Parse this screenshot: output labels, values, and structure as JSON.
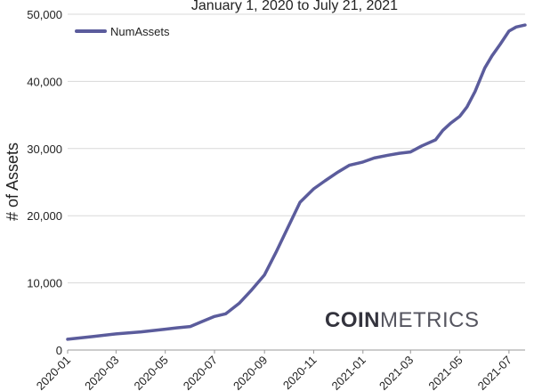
{
  "chart_data": {
    "type": "line",
    "title": "January 1, 2020 to July 21, 2021",
    "ylabel": "# of Assets",
    "xlabel": "",
    "ylim": [
      0,
      50000
    ],
    "xlim": [
      "2020-01-01",
      "2021-07-21"
    ],
    "y_ticks": [
      "0",
      "10,000",
      "20,000",
      "30,000",
      "40,000",
      "50,000"
    ],
    "y_tick_values": [
      0,
      10000,
      20000,
      30000,
      40000,
      50000
    ],
    "x_ticks": [
      "2020-01",
      "2020-03",
      "2020-05",
      "2020-07",
      "2020-09",
      "2020-11",
      "2021-01",
      "2021-03",
      "2021-05",
      "2021-07"
    ],
    "grid": "horizontal",
    "legend_position": "top-left",
    "series": [
      {
        "name": "NumAssets",
        "color": "#5b5c9c",
        "x": [
          "2020-01-01",
          "2020-02-01",
          "2020-03-01",
          "2020-04-01",
          "2020-05-01",
          "2020-05-15",
          "2020-06-01",
          "2020-06-15",
          "2020-07-01",
          "2020-07-15",
          "2020-08-01",
          "2020-08-15",
          "2020-09-01",
          "2020-09-15",
          "2020-10-01",
          "2020-10-15",
          "2020-11-01",
          "2020-11-15",
          "2020-12-01",
          "2020-12-15",
          "2021-01-01",
          "2021-01-15",
          "2021-02-01",
          "2021-02-15",
          "2021-03-01",
          "2021-03-15",
          "2021-04-01",
          "2021-04-10",
          "2021-04-20",
          "2021-05-01",
          "2021-05-10",
          "2021-05-20",
          "2021-06-01",
          "2021-06-10",
          "2021-06-20",
          "2021-07-01",
          "2021-07-10",
          "2021-07-21"
        ],
        "values": [
          1600,
          2000,
          2400,
          2700,
          3100,
          3300,
          3500,
          4200,
          5000,
          5400,
          7000,
          8800,
          11200,
          14500,
          18500,
          22000,
          24000,
          25200,
          26500,
          27500,
          28000,
          28600,
          29000,
          29300,
          29500,
          30400,
          31300,
          32700,
          33800,
          34800,
          36200,
          38500,
          42000,
          43800,
          45500,
          47500,
          48100,
          48400
        ]
      }
    ],
    "watermark": {
      "bold": "COIN",
      "light": "METRICS"
    }
  }
}
